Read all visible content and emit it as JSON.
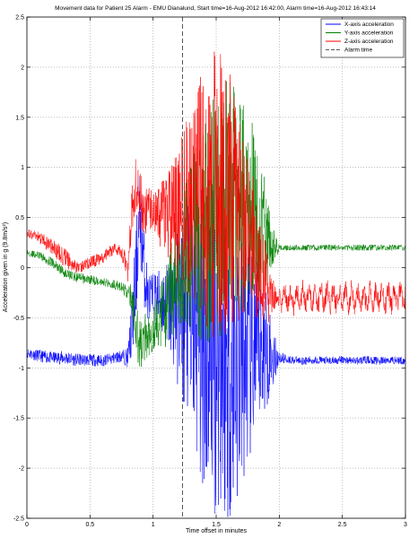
{
  "chart_data": {
    "type": "line",
    "title": "Movement data for Patient 25 Alarm - EMU Dianalund, Start time=16-Aug-2012 16:42:00, Alarm time=16-Aug-2012 16:43:14",
    "xlabel": "Time offset in minutes",
    "ylabel": "Acceleration given in g (9.8m/s²)",
    "xlim": [
      0,
      3
    ],
    "ylim": [
      -2.5,
      2.5
    ],
    "xticks": [
      "0",
      "0.5",
      "1",
      "1.5",
      "2",
      "2.5",
      "3"
    ],
    "yticks": [
      "-2.5",
      "-2",
      "-1.5",
      "-1",
      "-0.5",
      "0",
      "0.5",
      "1",
      "1.5",
      "2",
      "2.5"
    ],
    "grid": true,
    "legend_position": "top-right",
    "alarm_time_x": 1.2333,
    "series": [
      {
        "name": "X-axis acceleration",
        "color": "#0000ff",
        "x": [
          0,
          0.1,
          0.2,
          0.3,
          0.4,
          0.5,
          0.6,
          0.7,
          0.75,
          0.8,
          0.83,
          0.86,
          0.88,
          0.9,
          0.93,
          0.96,
          1.0,
          1.1,
          1.2,
          1.3,
          1.4,
          1.5,
          1.6,
          1.7,
          1.8,
          1.9,
          1.95,
          2.0,
          2.1,
          2.2,
          2.3,
          2.4,
          2.5,
          2.6,
          2.7,
          2.8,
          2.9,
          3.0
        ],
        "values": [
          -0.85,
          -0.88,
          -0.9,
          -0.9,
          -0.92,
          -0.92,
          -0.93,
          -0.9,
          -0.88,
          -0.9,
          -0.6,
          -0.2,
          0.3,
          0.5,
          0.0,
          -0.3,
          -0.3,
          -0.35,
          -0.4,
          -0.5,
          -0.7,
          -0.8,
          -1.0,
          -0.9,
          -0.85,
          -0.8,
          -0.9,
          -0.9,
          -0.92,
          -0.93,
          -0.92,
          -0.93,
          -0.92,
          -0.93,
          -0.92,
          -0.93,
          -0.92,
          -0.93
        ],
        "amplitude": [
          0.05,
          0.06,
          0.06,
          0.07,
          0.06,
          0.06,
          0.06,
          0.06,
          0.06,
          0.1,
          0.3,
          0.5,
          0.5,
          0.5,
          0.4,
          0.25,
          0.25,
          0.4,
          0.8,
          1.2,
          1.6,
          1.7,
          1.6,
          1.4,
          1.0,
          0.6,
          0.3,
          0.06,
          0.04,
          0.04,
          0.04,
          0.04,
          0.04,
          0.04,
          0.04,
          0.04,
          0.04,
          0.04
        ]
      },
      {
        "name": "Y-axis acceleration",
        "color": "#008000",
        "x": [
          0,
          0.1,
          0.2,
          0.3,
          0.4,
          0.5,
          0.6,
          0.7,
          0.75,
          0.8,
          0.83,
          0.86,
          0.88,
          0.9,
          0.93,
          0.96,
          1.0,
          1.1,
          1.2,
          1.3,
          1.4,
          1.5,
          1.6,
          1.7,
          1.8,
          1.9,
          1.95,
          2.0,
          2.1,
          2.2,
          2.3,
          2.4,
          2.5,
          2.6,
          2.7,
          2.8,
          2.9,
          3.0
        ],
        "values": [
          0.15,
          0.12,
          0.05,
          -0.05,
          -0.1,
          -0.12,
          -0.14,
          -0.17,
          -0.2,
          -0.25,
          -0.3,
          -0.55,
          -0.7,
          -0.8,
          -0.7,
          -0.65,
          -0.6,
          -0.4,
          0.0,
          0.2,
          0.3,
          0.5,
          0.7,
          0.6,
          0.5,
          0.3,
          0.2,
          0.2,
          0.2,
          0.2,
          0.2,
          0.2,
          0.2,
          0.2,
          0.2,
          0.2,
          0.2,
          0.2
        ],
        "amplitude": [
          0.03,
          0.04,
          0.05,
          0.05,
          0.05,
          0.05,
          0.04,
          0.05,
          0.05,
          0.08,
          0.15,
          0.25,
          0.25,
          0.25,
          0.25,
          0.25,
          0.25,
          0.4,
          0.6,
          0.9,
          1.1,
          1.3,
          1.2,
          1.1,
          0.9,
          0.5,
          0.2,
          0.03,
          0.03,
          0.03,
          0.03,
          0.03,
          0.03,
          0.03,
          0.03,
          0.03,
          0.03,
          0.03
        ]
      },
      {
        "name": "Z-axis acceleration",
        "color": "#ff0000",
        "x": [
          0,
          0.1,
          0.2,
          0.3,
          0.4,
          0.5,
          0.6,
          0.7,
          0.75,
          0.8,
          0.83,
          0.86,
          0.88,
          0.9,
          0.93,
          0.96,
          1.0,
          1.1,
          1.2,
          1.3,
          1.4,
          1.5,
          1.6,
          1.7,
          1.8,
          1.9,
          1.95,
          2.0,
          2.1,
          2.2,
          2.3,
          2.4,
          2.5,
          2.6,
          2.7,
          2.8,
          2.9,
          3.0
        ],
        "values": [
          0.35,
          0.3,
          0.2,
          0.1,
          0.0,
          0.05,
          0.1,
          0.2,
          0.15,
          0.0,
          0.6,
          0.8,
          0.75,
          0.65,
          0.6,
          0.55,
          0.55,
          0.5,
          0.5,
          0.6,
          0.7,
          0.7,
          0.7,
          0.5,
          0.2,
          -0.2,
          -0.3,
          -0.3,
          -0.3,
          -0.3,
          -0.3,
          -0.3,
          -0.3,
          -0.3,
          -0.3,
          -0.3,
          -0.3,
          -0.3
        ],
        "amplitude": [
          0.04,
          0.06,
          0.08,
          0.1,
          0.06,
          0.06,
          0.06,
          0.06,
          0.06,
          0.15,
          0.3,
          0.3,
          0.3,
          0.3,
          0.25,
          0.25,
          0.25,
          0.4,
          0.7,
          1.0,
          1.3,
          1.5,
          1.3,
          1.0,
          0.7,
          0.4,
          0.2,
          0.08,
          0.1,
          0.1,
          0.1,
          0.1,
          0.1,
          0.1,
          0.1,
          0.1,
          0.1,
          0.1
        ]
      }
    ],
    "legend_entries": [
      {
        "label": "X-axis acceleration",
        "color": "#0000ff",
        "style": "solid"
      },
      {
        "label": "Y-axis acceleration",
        "color": "#008000",
        "style": "solid"
      },
      {
        "label": "Z-axis acceleration",
        "color": "#ff0000",
        "style": "solid"
      },
      {
        "label": "Alarm time",
        "color": "#555555",
        "style": "dashed"
      }
    ]
  }
}
